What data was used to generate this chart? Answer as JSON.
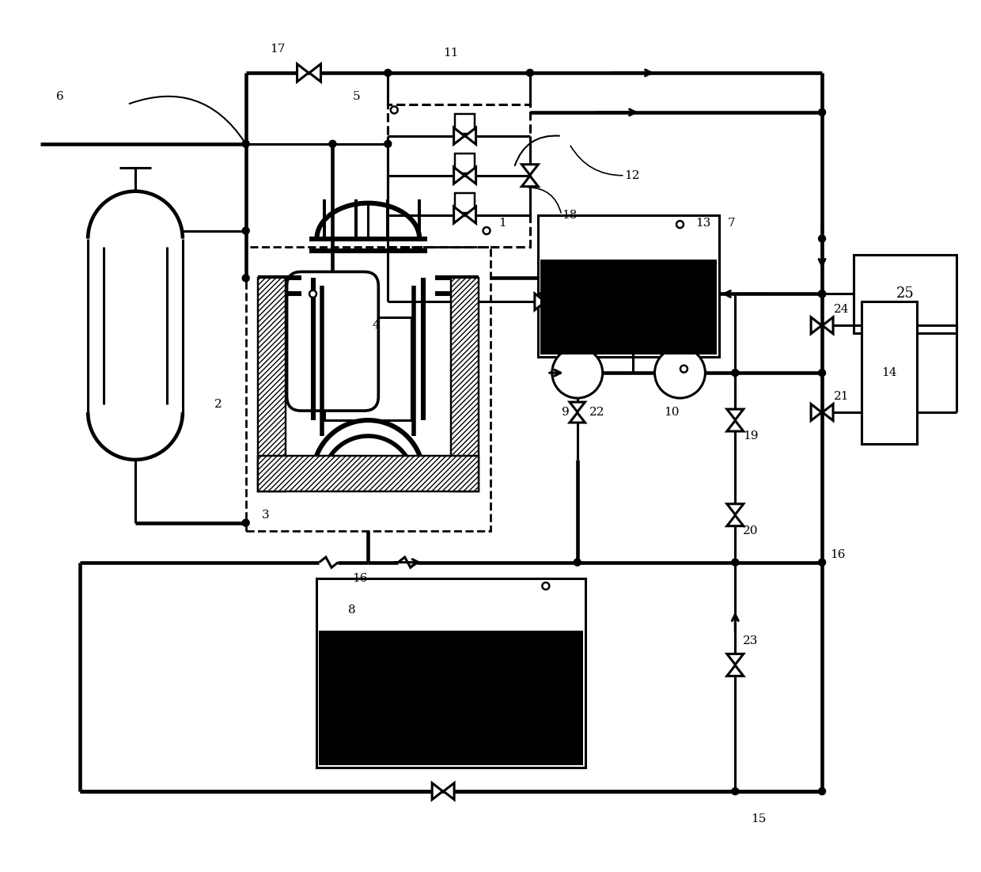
{
  "bg": "#ffffff",
  "lc": "#000000",
  "lw": 2.2,
  "fw": 12.4,
  "fh": 11.02,
  "dpi": 100,
  "xmax": 124,
  "ymax": 110
}
